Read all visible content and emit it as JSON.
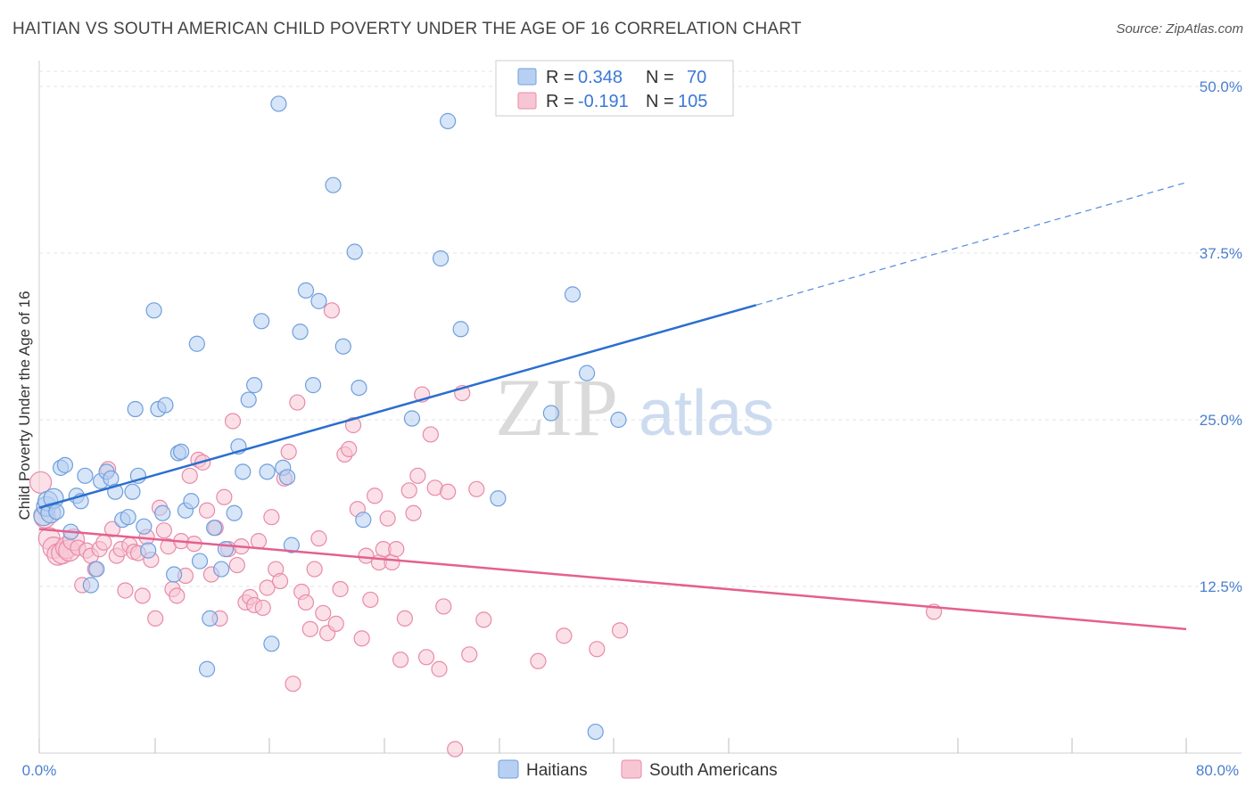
{
  "title": "HAITIAN VS SOUTH AMERICAN CHILD POVERTY UNDER THE AGE OF 16 CORRELATION CHART",
  "source": "Source: ZipAtlas.com",
  "watermark": "ZIPatlas",
  "colors": {
    "blue_fill": "#b7d0f2",
    "blue_stroke": "#6f9fdc",
    "blue_line": "#2a6fcf",
    "pink_fill": "#f7c6d4",
    "pink_stroke": "#e88aaa",
    "pink_line": "#e4608e",
    "axis_tick": "#4a7fcf"
  },
  "chart_data": {
    "type": "scatter",
    "xlabel": "",
    "ylabel": "Child Poverty Under the Age of 16",
    "xlim": [
      0,
      80
    ],
    "ylim": [
      0,
      50
    ],
    "x_tick_labels": [
      "0.0%",
      "80.0%"
    ],
    "y_ticks": [
      12.5,
      25.0,
      37.5,
      50.0
    ],
    "y_tick_labels": [
      "12.5%",
      "25.0%",
      "37.5%",
      "50.0%"
    ],
    "grid": true,
    "legend": {
      "placement": "top-center",
      "entries": [
        {
          "series": "Haitians",
          "r_label": "R =",
          "r_value": "0.348",
          "n_label": "N =",
          "n_value": "70"
        },
        {
          "series": "South Americans",
          "r_label": "R =",
          "r_value": "-0.191",
          "n_label": "N =",
          "n_value": "105"
        }
      ]
    },
    "series": [
      {
        "name": "Haitians",
        "trend": {
          "x_start": 0,
          "y_start": 18.4,
          "x_solid_end": 50,
          "y_solid_end": 33.6,
          "x_dash_end": 80,
          "y_dash_end": 42.8
        },
        "points": [
          [
            0.3,
            17.8
          ],
          [
            0.5,
            18.5
          ],
          [
            0.6,
            18.9
          ],
          [
            0.8,
            18.0
          ],
          [
            1.0,
            19.1
          ],
          [
            1.2,
            18.1
          ],
          [
            1.5,
            21.4
          ],
          [
            1.8,
            21.6
          ],
          [
            2.2,
            16.6
          ],
          [
            2.6,
            19.3
          ],
          [
            2.9,
            18.9
          ],
          [
            3.2,
            20.8
          ],
          [
            3.6,
            12.6
          ],
          [
            4.0,
            13.8
          ],
          [
            4.3,
            20.4
          ],
          [
            4.7,
            21.1
          ],
          [
            5.0,
            20.6
          ],
          [
            5.3,
            19.6
          ],
          [
            5.8,
            17.5
          ],
          [
            6.2,
            17.7
          ],
          [
            6.5,
            19.6
          ],
          [
            6.7,
            25.8
          ],
          [
            6.9,
            20.8
          ],
          [
            7.3,
            17.0
          ],
          [
            7.6,
            15.2
          ],
          [
            8.0,
            33.2
          ],
          [
            8.3,
            25.8
          ],
          [
            8.6,
            18.0
          ],
          [
            8.8,
            26.1
          ],
          [
            9.4,
            13.4
          ],
          [
            9.7,
            22.5
          ],
          [
            9.9,
            22.6
          ],
          [
            10.2,
            18.2
          ],
          [
            10.6,
            18.9
          ],
          [
            11.0,
            30.7
          ],
          [
            11.2,
            14.4
          ],
          [
            11.7,
            6.3
          ],
          [
            11.9,
            10.1
          ],
          [
            12.2,
            16.9
          ],
          [
            12.7,
            13.8
          ],
          [
            13.0,
            15.3
          ],
          [
            13.6,
            18.0
          ],
          [
            13.9,
            23.0
          ],
          [
            14.2,
            21.1
          ],
          [
            14.6,
            26.5
          ],
          [
            15.0,
            27.6
          ],
          [
            15.5,
            32.4
          ],
          [
            15.9,
            21.1
          ],
          [
            16.2,
            8.2
          ],
          [
            16.7,
            48.7
          ],
          [
            17.0,
            21.4
          ],
          [
            17.3,
            20.7
          ],
          [
            17.6,
            15.6
          ],
          [
            18.2,
            31.6
          ],
          [
            18.6,
            34.7
          ],
          [
            19.1,
            27.6
          ],
          [
            19.5,
            33.9
          ],
          [
            20.5,
            42.6
          ],
          [
            21.2,
            30.5
          ],
          [
            22.0,
            37.6
          ],
          [
            22.3,
            27.4
          ],
          [
            22.6,
            17.5
          ],
          [
            26.0,
            25.1
          ],
          [
            28.0,
            37.1
          ],
          [
            28.5,
            47.4
          ],
          [
            29.4,
            31.8
          ],
          [
            32.0,
            19.1
          ],
          [
            35.7,
            25.5
          ],
          [
            37.2,
            34.4
          ],
          [
            38.2,
            28.5
          ],
          [
            38.8,
            1.6
          ],
          [
            40.4,
            25.0
          ]
        ]
      },
      {
        "name": "South Americans",
        "trend": {
          "x_start": 0,
          "y_start": 16.8,
          "x_solid_end": 80,
          "y_solid_end": 9.3
        },
        "points": [
          [
            0.1,
            20.3
          ],
          [
            0.4,
            17.7
          ],
          [
            0.7,
            16.1
          ],
          [
            1.0,
            15.4
          ],
          [
            1.3,
            14.9
          ],
          [
            1.6,
            15.0
          ],
          [
            1.9,
            15.4
          ],
          [
            2.1,
            15.2
          ],
          [
            2.4,
            16.0
          ],
          [
            2.7,
            15.4
          ],
          [
            3.0,
            12.6
          ],
          [
            3.3,
            15.2
          ],
          [
            3.6,
            14.8
          ],
          [
            3.9,
            13.8
          ],
          [
            4.2,
            15.3
          ],
          [
            4.5,
            15.8
          ],
          [
            4.8,
            21.3
          ],
          [
            5.1,
            16.8
          ],
          [
            5.4,
            14.8
          ],
          [
            5.7,
            15.3
          ],
          [
            6.0,
            12.2
          ],
          [
            6.3,
            15.6
          ],
          [
            6.6,
            15.1
          ],
          [
            6.9,
            15.0
          ],
          [
            7.2,
            11.8
          ],
          [
            7.5,
            16.2
          ],
          [
            7.8,
            14.5
          ],
          [
            8.1,
            10.1
          ],
          [
            8.4,
            18.4
          ],
          [
            8.7,
            16.7
          ],
          [
            9.0,
            15.5
          ],
          [
            9.3,
            12.3
          ],
          [
            9.6,
            11.8
          ],
          [
            9.9,
            15.9
          ],
          [
            10.2,
            13.3
          ],
          [
            10.5,
            20.8
          ],
          [
            10.8,
            15.7
          ],
          [
            11.1,
            22.0
          ],
          [
            11.4,
            21.8
          ],
          [
            11.7,
            18.2
          ],
          [
            12.0,
            13.4
          ],
          [
            12.3,
            16.9
          ],
          [
            12.6,
            10.1
          ],
          [
            12.9,
            19.2
          ],
          [
            13.2,
            15.3
          ],
          [
            13.5,
            24.9
          ],
          [
            13.8,
            14.1
          ],
          [
            14.1,
            15.5
          ],
          [
            14.4,
            11.3
          ],
          [
            14.7,
            11.7
          ],
          [
            15.0,
            11.1
          ],
          [
            15.3,
            15.9
          ],
          [
            15.6,
            10.9
          ],
          [
            15.9,
            12.4
          ],
          [
            16.2,
            17.7
          ],
          [
            16.5,
            13.8
          ],
          [
            16.8,
            12.9
          ],
          [
            17.1,
            20.6
          ],
          [
            17.4,
            22.6
          ],
          [
            17.7,
            5.2
          ],
          [
            18.0,
            26.3
          ],
          [
            18.3,
            12.1
          ],
          [
            18.6,
            11.3
          ],
          [
            18.9,
            9.3
          ],
          [
            19.2,
            13.8
          ],
          [
            19.5,
            16.1
          ],
          [
            19.8,
            10.5
          ],
          [
            20.1,
            9.0
          ],
          [
            20.4,
            33.2
          ],
          [
            20.7,
            9.7
          ],
          [
            21.0,
            12.3
          ],
          [
            21.3,
            22.4
          ],
          [
            21.6,
            22.8
          ],
          [
            21.9,
            24.6
          ],
          [
            22.2,
            18.3
          ],
          [
            22.5,
            8.6
          ],
          [
            22.8,
            14.8
          ],
          [
            23.1,
            11.5
          ],
          [
            23.4,
            19.3
          ],
          [
            23.7,
            14.3
          ],
          [
            24.0,
            15.3
          ],
          [
            24.3,
            17.6
          ],
          [
            24.6,
            14.3
          ],
          [
            24.9,
            15.3
          ],
          [
            25.2,
            7.0
          ],
          [
            25.5,
            10.1
          ],
          [
            25.8,
            19.7
          ],
          [
            26.1,
            18.0
          ],
          [
            26.4,
            20.8
          ],
          [
            26.7,
            26.9
          ],
          [
            27.0,
            7.2
          ],
          [
            27.3,
            23.9
          ],
          [
            27.6,
            19.9
          ],
          [
            27.9,
            6.3
          ],
          [
            28.2,
            11.0
          ],
          [
            28.5,
            19.6
          ],
          [
            29.0,
            0.3
          ],
          [
            29.5,
            27.0
          ],
          [
            30.0,
            7.4
          ],
          [
            30.5,
            19.8
          ],
          [
            31.0,
            10.0
          ],
          [
            34.8,
            6.9
          ],
          [
            36.6,
            8.8
          ],
          [
            38.9,
            7.8
          ],
          [
            40.5,
            9.2
          ],
          [
            62.4,
            10.6
          ]
        ]
      }
    ]
  }
}
